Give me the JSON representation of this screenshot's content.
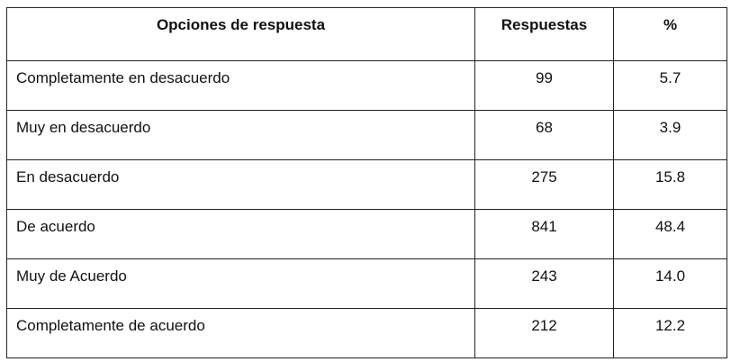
{
  "table": {
    "headers": {
      "option": "Opciones de respuesta",
      "count": "Respuestas",
      "pct": "%"
    },
    "rows": [
      {
        "option": "Completamente en desacuerdo",
        "count": "99",
        "pct": "5.7"
      },
      {
        "option": "Muy en desacuerdo",
        "count": "68",
        "pct": "3.9"
      },
      {
        "option": "En desacuerdo",
        "count": "275",
        "pct": "15.8"
      },
      {
        "option": "De acuerdo",
        "count": "841",
        "pct": "48.4"
      },
      {
        "option": "Muy de Acuerdo",
        "count": "243",
        "pct": "14.0"
      },
      {
        "option": "Completamente de acuerdo",
        "count": "212",
        "pct": "12.2"
      }
    ]
  }
}
